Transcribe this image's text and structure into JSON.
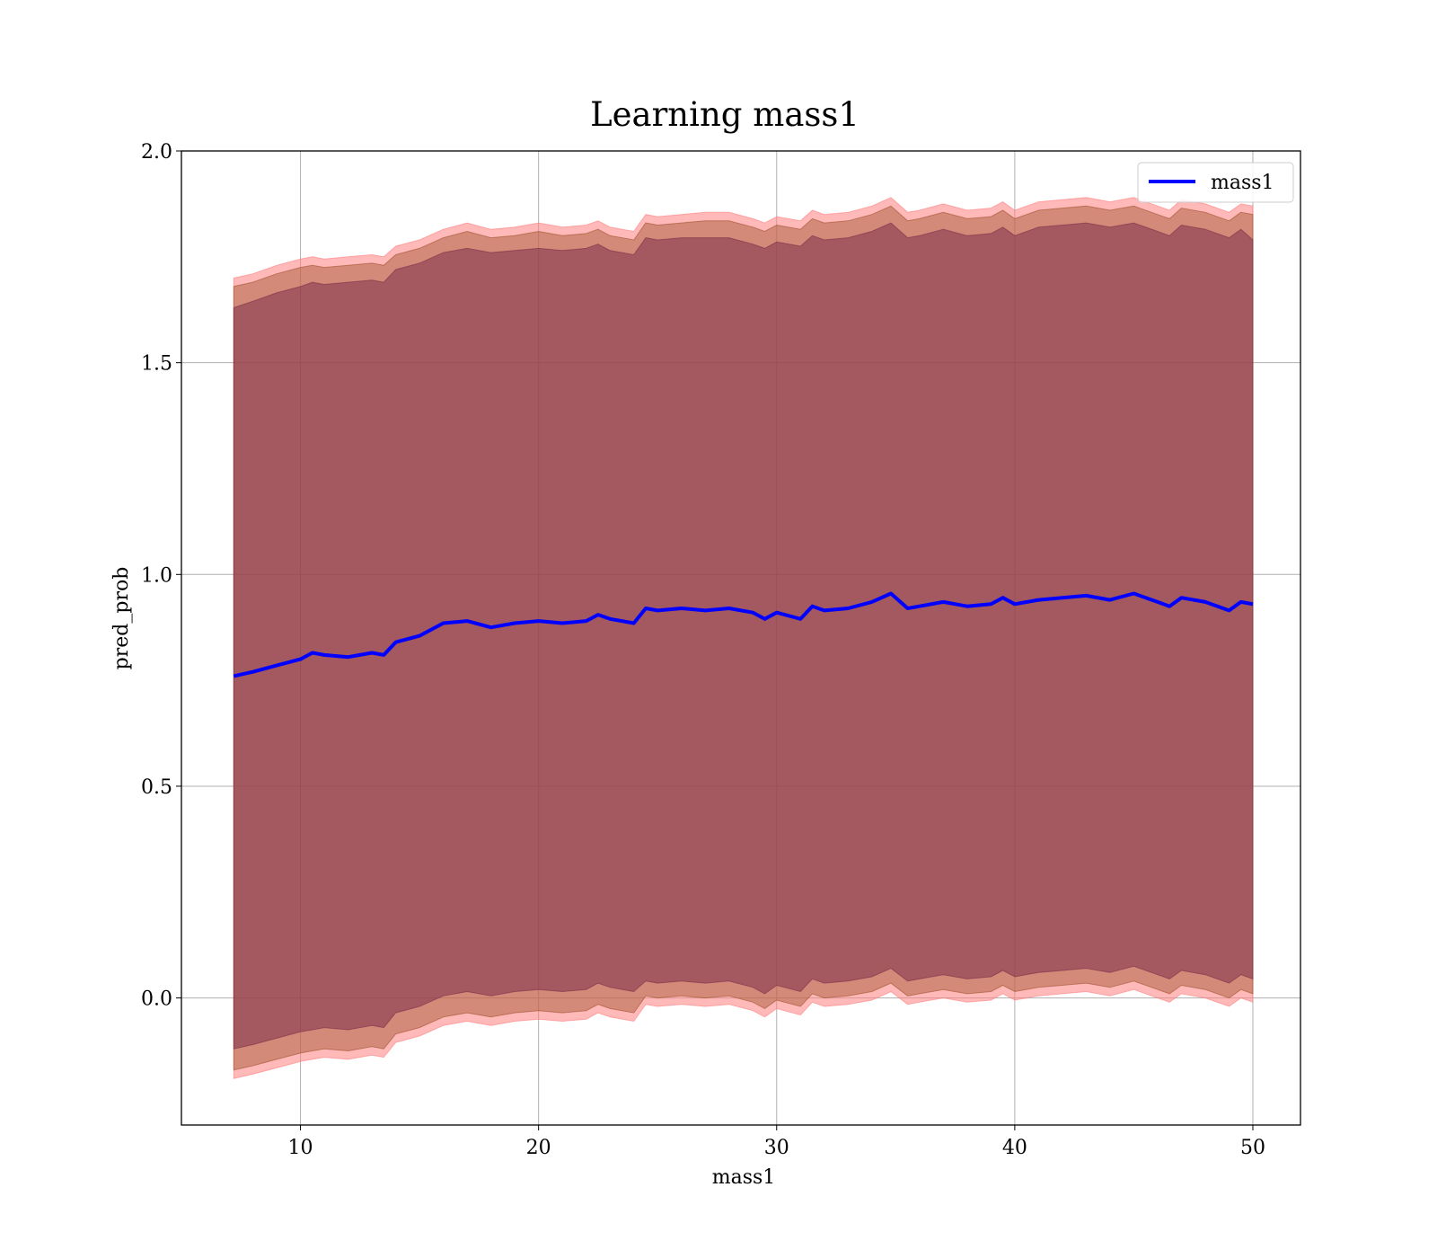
{
  "chart_data": {
    "type": "line",
    "title": "Learning mass1",
    "xlabel": "mass1",
    "ylabel": "pred_prob",
    "xlim": [
      5,
      52
    ],
    "ylim": [
      -0.3,
      2.0
    ],
    "xticks": [
      10,
      20,
      30,
      40,
      50
    ],
    "yticks": [
      0.0,
      0.5,
      1.0,
      1.5,
      2.0
    ],
    "xtick_labels": [
      "10",
      "20",
      "30",
      "40",
      "50"
    ],
    "ytick_labels": [
      "0.0",
      "0.5",
      "1.0",
      "1.5",
      "2.0"
    ],
    "grid": true,
    "legend": {
      "placement": "top-right",
      "entries": [
        "mass1"
      ]
    },
    "x": [
      7.2,
      8,
      9,
      10,
      10.5,
      11,
      12,
      13,
      13.5,
      14,
      15,
      16,
      17,
      18,
      19,
      20,
      21,
      22,
      22.5,
      23,
      24,
      24.5,
      25,
      26,
      27,
      28,
      29,
      29.5,
      30,
      31,
      31.5,
      32,
      33,
      34,
      34.8,
      35.5,
      36,
      37,
      38,
      39,
      39.5,
      40,
      41,
      42,
      43,
      44,
      45,
      46,
      46.5,
      47,
      48,
      49,
      49.5,
      50
    ],
    "mean": [
      0.76,
      0.77,
      0.785,
      0.8,
      0.815,
      0.81,
      0.805,
      0.815,
      0.81,
      0.84,
      0.855,
      0.885,
      0.89,
      0.875,
      0.885,
      0.89,
      0.885,
      0.89,
      0.905,
      0.895,
      0.885,
      0.92,
      0.915,
      0.92,
      0.915,
      0.92,
      0.91,
      0.895,
      0.91,
      0.895,
      0.925,
      0.915,
      0.92,
      0.935,
      0.955,
      0.92,
      0.925,
      0.935,
      0.925,
      0.93,
      0.945,
      0.93,
      0.94,
      0.945,
      0.95,
      0.94,
      0.955,
      0.935,
      0.925,
      0.945,
      0.935,
      0.915,
      0.935,
      0.93
    ],
    "series": [
      {
        "name": "mass1",
        "color": "#0000ff",
        "values_key": "mean"
      }
    ],
    "bands": [
      {
        "color": "#ff7f7f",
        "opacity": 0.55,
        "upper": [
          1.7,
          1.71,
          1.73,
          1.745,
          1.75,
          1.745,
          1.75,
          1.755,
          1.75,
          1.775,
          1.79,
          1.815,
          1.83,
          1.815,
          1.82,
          1.83,
          1.82,
          1.825,
          1.835,
          1.82,
          1.81,
          1.85,
          1.845,
          1.85,
          1.855,
          1.855,
          1.84,
          1.83,
          1.845,
          1.835,
          1.86,
          1.85,
          1.855,
          1.87,
          1.89,
          1.855,
          1.86,
          1.875,
          1.86,
          1.865,
          1.88,
          1.86,
          1.88,
          1.885,
          1.89,
          1.88,
          1.89,
          1.87,
          1.86,
          1.885,
          1.875,
          1.855,
          1.875,
          1.87
        ],
        "lower": [
          -0.19,
          -0.18,
          -0.165,
          -0.15,
          -0.145,
          -0.14,
          -0.145,
          -0.135,
          -0.14,
          -0.105,
          -0.09,
          -0.065,
          -0.055,
          -0.065,
          -0.055,
          -0.05,
          -0.055,
          -0.05,
          -0.035,
          -0.045,
          -0.055,
          -0.015,
          -0.02,
          -0.015,
          -0.02,
          -0.015,
          -0.03,
          -0.045,
          -0.025,
          -0.04,
          -0.01,
          -0.02,
          -0.015,
          -0.005,
          0.015,
          -0.015,
          -0.01,
          0.0,
          -0.01,
          -0.005,
          0.01,
          -0.005,
          0.005,
          0.01,
          0.015,
          0.005,
          0.02,
          0.0,
          -0.01,
          0.01,
          0.0,
          -0.02,
          0.0,
          -0.01
        ]
      },
      {
        "color": "#a0522d",
        "opacity": 0.45,
        "upper": [
          1.68,
          1.69,
          1.71,
          1.725,
          1.73,
          1.725,
          1.73,
          1.735,
          1.73,
          1.755,
          1.77,
          1.795,
          1.81,
          1.795,
          1.8,
          1.81,
          1.8,
          1.805,
          1.815,
          1.8,
          1.79,
          1.83,
          1.825,
          1.83,
          1.835,
          1.835,
          1.82,
          1.81,
          1.825,
          1.815,
          1.84,
          1.83,
          1.835,
          1.85,
          1.87,
          1.835,
          1.84,
          1.855,
          1.84,
          1.845,
          1.86,
          1.84,
          1.86,
          1.865,
          1.87,
          1.86,
          1.87,
          1.85,
          1.84,
          1.865,
          1.855,
          1.835,
          1.855,
          1.85
        ],
        "lower": [
          -0.17,
          -0.16,
          -0.145,
          -0.13,
          -0.125,
          -0.12,
          -0.125,
          -0.115,
          -0.12,
          -0.085,
          -0.07,
          -0.045,
          -0.035,
          -0.045,
          -0.035,
          -0.03,
          -0.035,
          -0.03,
          -0.015,
          -0.025,
          -0.035,
          0.005,
          0.0,
          0.005,
          0.0,
          0.005,
          -0.01,
          -0.025,
          -0.005,
          -0.02,
          0.01,
          0.0,
          0.005,
          0.015,
          0.035,
          0.005,
          0.01,
          0.02,
          0.01,
          0.015,
          0.03,
          0.015,
          0.025,
          0.03,
          0.035,
          0.025,
          0.04,
          0.02,
          0.01,
          0.03,
          0.02,
          0.0,
          0.02,
          0.01
        ]
      },
      {
        "color": "#7b2f4a",
        "opacity": 0.55,
        "upper": [
          1.63,
          1.645,
          1.665,
          1.68,
          1.69,
          1.685,
          1.69,
          1.695,
          1.69,
          1.72,
          1.735,
          1.76,
          1.77,
          1.76,
          1.765,
          1.77,
          1.765,
          1.77,
          1.78,
          1.765,
          1.755,
          1.795,
          1.79,
          1.795,
          1.795,
          1.795,
          1.78,
          1.77,
          1.785,
          1.775,
          1.8,
          1.79,
          1.795,
          1.81,
          1.83,
          1.795,
          1.8,
          1.815,
          1.8,
          1.805,
          1.82,
          1.8,
          1.82,
          1.825,
          1.83,
          1.82,
          1.83,
          1.81,
          1.8,
          1.825,
          1.815,
          1.795,
          1.815,
          1.79
        ],
        "lower": [
          -0.12,
          -0.11,
          -0.095,
          -0.08,
          -0.075,
          -0.07,
          -0.075,
          -0.065,
          -0.07,
          -0.035,
          -0.02,
          0.005,
          0.015,
          0.005,
          0.015,
          0.02,
          0.015,
          0.02,
          0.035,
          0.025,
          0.015,
          0.04,
          0.035,
          0.04,
          0.035,
          0.04,
          0.025,
          0.01,
          0.03,
          0.015,
          0.045,
          0.035,
          0.04,
          0.05,
          0.07,
          0.04,
          0.045,
          0.055,
          0.045,
          0.05,
          0.065,
          0.05,
          0.06,
          0.065,
          0.07,
          0.06,
          0.075,
          0.055,
          0.045,
          0.065,
          0.055,
          0.035,
          0.055,
          0.045
        ]
      }
    ]
  }
}
